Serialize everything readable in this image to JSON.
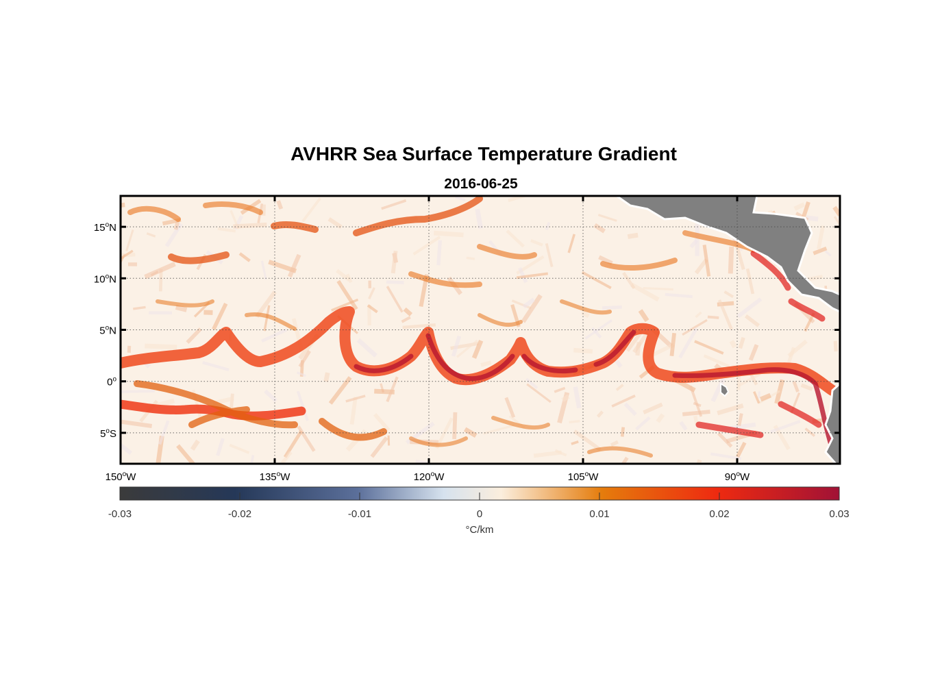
{
  "figure": {
    "title": "AVHRR Sea Surface Temperature Gradient",
    "subtitle": "2016-06-25"
  },
  "map": {
    "lon_range": [
      -150,
      -80
    ],
    "lat_range": [
      -8,
      18
    ],
    "lon_ticks": [
      {
        "value": -150,
        "deg": "150",
        "sup": "o",
        "hemi": "W"
      },
      {
        "value": -135,
        "deg": "135",
        "sup": "o",
        "hemi": "W"
      },
      {
        "value": -120,
        "deg": "120",
        "sup": "o",
        "hemi": "W"
      },
      {
        "value": -105,
        "deg": "105",
        "sup": "o",
        "hemi": "W"
      },
      {
        "value": -90,
        "deg": "90",
        "sup": "o",
        "hemi": "W"
      }
    ],
    "lat_ticks": [
      {
        "value": 15,
        "deg": "15",
        "sup": "o",
        "hemi": "N"
      },
      {
        "value": 10,
        "deg": "10",
        "sup": "o",
        "hemi": "N"
      },
      {
        "value": 5,
        "deg": "5",
        "sup": "o",
        "hemi": "N"
      },
      {
        "value": 0,
        "deg": "0",
        "sup": "o",
        "hemi": ""
      },
      {
        "value": -5,
        "deg": "5",
        "sup": "o",
        "hemi": "S"
      }
    ],
    "grid": "dotted",
    "land_color": "#808080"
  },
  "colorbar": {
    "range": [
      -0.03,
      0.03
    ],
    "tick_labels": [
      "-0.03",
      "-0.02",
      "-0.01",
      "0",
      "0.01",
      "0.02",
      "0.03"
    ],
    "units": "°C/km",
    "stops": [
      "#3b3b3b",
      "#253858",
      "#5b6f9a",
      "#d6e2ee",
      "#fbeedd",
      "#e57c0c",
      "#ee2a10",
      "#a11236"
    ]
  },
  "chart_data": {
    "type": "heatmap",
    "title": "AVHRR Sea Surface Temperature Gradient",
    "subtitle": "2016-06-25",
    "xlabel": "",
    "ylabel": "",
    "x_range": [
      -150,
      -80
    ],
    "y_range": [
      -8,
      18
    ],
    "value_range": [
      -0.03,
      0.03
    ],
    "units": "°C/km",
    "features": [
      {
        "description_free": true,
        "lat_center": 1.5,
        "lon_start": -150,
        "lon_end": -80,
        "value": 0.027
      },
      {
        "lat_center": -2.5,
        "lon_start": -150,
        "lon_end": -130,
        "value": 0.02
      }
    ]
  }
}
